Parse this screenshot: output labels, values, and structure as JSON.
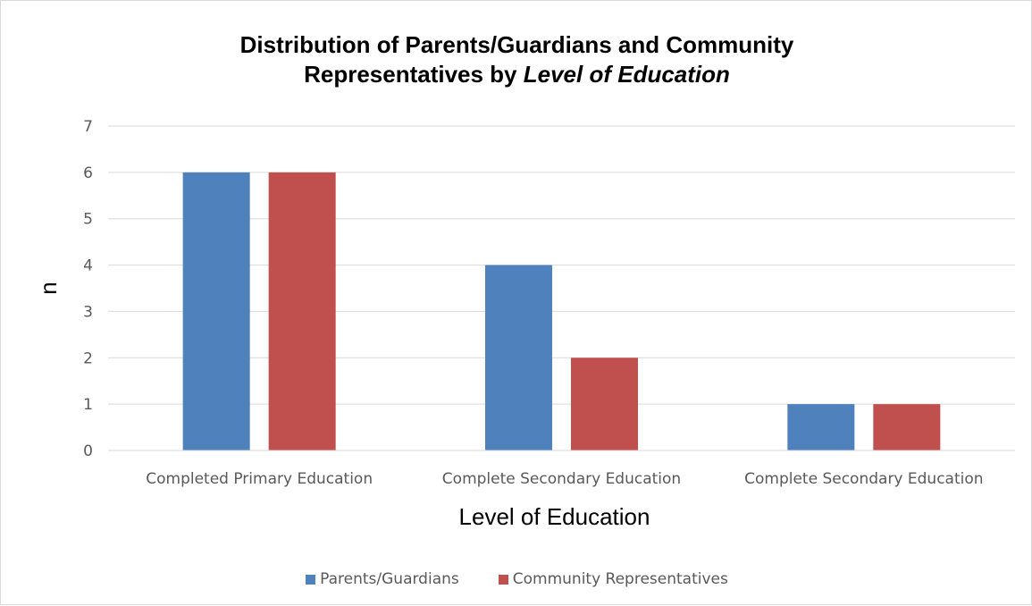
{
  "chart_data": {
    "type": "bar",
    "title_part1": "Distribution of Parents/Guardians and Community",
    "title_part2": "Representatives by ",
    "title_part3": "Level of Education",
    "xlabel": "Level of Education",
    "ylabel": "n",
    "ylim": [
      0,
      7
    ],
    "yticks": [
      "0",
      "1",
      "2",
      "3",
      "4",
      "5",
      "6",
      "7"
    ],
    "grid": true,
    "legend_position": "bottom",
    "categories": [
      "Completed Primary Education",
      "Complete Secondary Education",
      "Complete Secondary Education"
    ],
    "series": [
      {
        "name": "Parents/Guardians",
        "color": "#4f81bd",
        "values": [
          6,
          4,
          1
        ]
      },
      {
        "name": "Community Representatives",
        "color": "#c0504d",
        "values": [
          6,
          2,
          1
        ]
      }
    ]
  }
}
